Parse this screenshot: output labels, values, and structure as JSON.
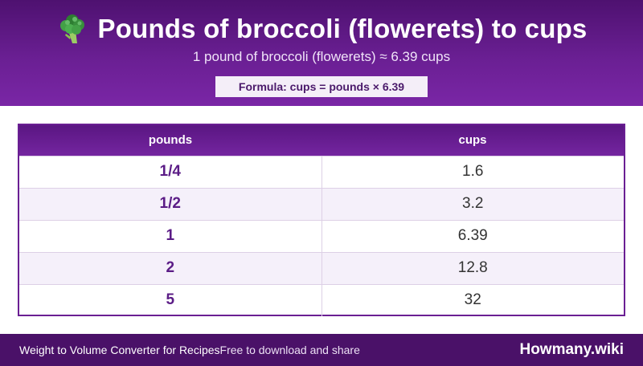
{
  "header": {
    "icon": "broccoli-icon",
    "title": "Pounds of broccoli (flowerets) to cups",
    "subtitle": "1 pound of broccoli (flowerets) ≈ 6.39 cups",
    "formula": "Formula: cups = pounds × 6.39"
  },
  "table": {
    "columns": [
      "pounds",
      "cups"
    ],
    "rows": [
      {
        "pounds": "1/4",
        "cups": "1.6"
      },
      {
        "pounds": "1/2",
        "cups": "3.2"
      },
      {
        "pounds": "1",
        "cups": "6.39"
      },
      {
        "pounds": "2",
        "cups": "12.8"
      },
      {
        "pounds": "5",
        "cups": "32"
      }
    ]
  },
  "footer": {
    "category": "Weight to Volume Converter for Recipes",
    "tagline": "Free to download and share",
    "brand": "Howmany.wiki"
  },
  "colors": {
    "header_purple": "#6a1f93",
    "dark_purple": "#4a1168",
    "row_alt": "#f5f0fa"
  }
}
